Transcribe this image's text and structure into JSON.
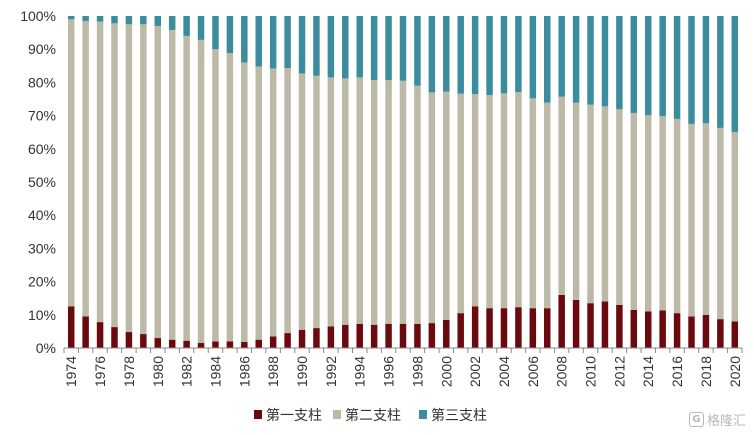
{
  "chart_data": {
    "type": "bar",
    "stacked": true,
    "categories": [
      "1974",
      "1975",
      "1976",
      "1977",
      "1978",
      "1979",
      "1980",
      "1981",
      "1982",
      "1983",
      "1984",
      "1985",
      "1986",
      "1987",
      "1988",
      "1989",
      "1990",
      "1991",
      "1992",
      "1993",
      "1994",
      "1995",
      "1996",
      "1997",
      "1998",
      "1999",
      "2000",
      "2001",
      "2002",
      "2003",
      "2004",
      "2005",
      "2006",
      "2007",
      "2008",
      "2009",
      "2010",
      "2011",
      "2012",
      "2013",
      "2014",
      "2015",
      "2016",
      "2017",
      "2018",
      "2019",
      "2020"
    ],
    "x_tick_labels": [
      "1974",
      "1976",
      "1978",
      "1980",
      "1982",
      "1984",
      "1986",
      "1988",
      "1990",
      "1992",
      "1994",
      "1996",
      "1998",
      "2000",
      "2002",
      "2004",
      "2006",
      "2008",
      "2010",
      "2012",
      "2014",
      "2016",
      "2018",
      "2020"
    ],
    "series": [
      {
        "name": "第一支柱",
        "color": "#6b0a0e",
        "values": [
          12.5,
          9.5,
          7.8,
          6.3,
          4.8,
          4.2,
          3.0,
          2.5,
          2.2,
          1.5,
          2.0,
          2.0,
          1.8,
          2.5,
          3.5,
          4.5,
          5.5,
          6.0,
          6.5,
          7.0,
          7.3,
          7.0,
          7.3,
          7.3,
          7.3,
          7.5,
          8.5,
          10.5,
          12.5,
          12.0,
          12.0,
          12.3,
          12.0,
          12.0,
          16.0,
          14.5,
          13.5,
          14.0,
          13.0,
          11.5,
          11.0,
          11.3,
          10.5,
          9.5,
          10.0,
          8.7,
          8.0
        ]
      },
      {
        "name": "第二支柱",
        "color": "#bcbaa7",
        "values": [
          86.5,
          89.0,
          90.5,
          91.5,
          92.7,
          93.3,
          94.0,
          93.3,
          91.8,
          91.3,
          88.0,
          86.8,
          84.2,
          82.3,
          80.7,
          79.8,
          77.2,
          76.0,
          75.0,
          74.2,
          74.2,
          73.7,
          73.4,
          73.2,
          71.7,
          69.5,
          68.7,
          66.1,
          64.0,
          64.2,
          64.7,
          64.8,
          63.2,
          61.9,
          59.7,
          59.4,
          59.8,
          58.8,
          58.9,
          59.3,
          59.1,
          58.5,
          58.5,
          58.0,
          57.7,
          57.6,
          57.0
        ]
      },
      {
        "name": "第三支柱",
        "color": "#3b8d9e",
        "values": [
          1.0,
          1.5,
          1.7,
          2.2,
          2.5,
          2.5,
          3.0,
          4.2,
          6.0,
          7.2,
          10.0,
          11.2,
          14.0,
          15.2,
          15.8,
          15.7,
          17.3,
          18.0,
          18.5,
          18.8,
          18.5,
          19.3,
          19.3,
          19.5,
          21.0,
          23.0,
          22.8,
          23.4,
          23.5,
          23.8,
          23.3,
          22.9,
          24.8,
          26.1,
          24.3,
          26.1,
          26.7,
          27.2,
          28.1,
          29.2,
          29.9,
          30.2,
          31.0,
          32.5,
          32.3,
          33.7,
          35.0
        ]
      }
    ],
    "y_tick_labels": [
      "0%",
      "10%",
      "20%",
      "30%",
      "40%",
      "50%",
      "60%",
      "70%",
      "80%",
      "90%",
      "100%"
    ],
    "ylim": [
      0,
      100
    ],
    "y_unit": "%",
    "title": "",
    "xlabel": "",
    "ylabel": "",
    "grid": false,
    "legend": {
      "position": "bottom",
      "items": [
        "第一支柱",
        "第二支柱",
        "第三支柱"
      ]
    }
  },
  "watermark": {
    "text": "格隆汇",
    "logo_text": "G"
  }
}
